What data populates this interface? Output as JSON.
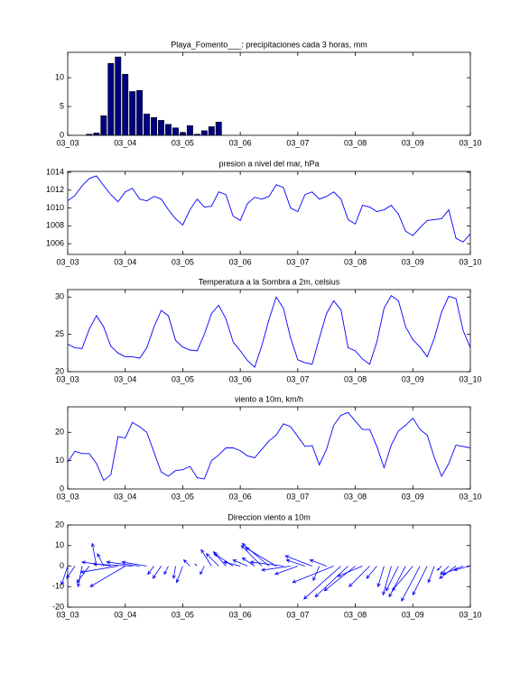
{
  "chart_data": [
    {
      "type": "bar",
      "title": "Playa_Fomento___: precipitaciones cada 3 horas, mm",
      "color": "#000080",
      "categories": [
        "03_03",
        null,
        null,
        null,
        null,
        null,
        null,
        null,
        "03_04",
        null,
        null,
        null,
        null,
        null,
        null,
        null,
        "03_05",
        null,
        null,
        null,
        null,
        null,
        null,
        null,
        "03_06",
        null,
        null,
        null,
        null,
        null,
        null,
        null,
        "03_07",
        null,
        null,
        null,
        null,
        null,
        null,
        null,
        "03_08",
        null,
        null,
        null,
        null,
        null,
        null,
        null,
        "03_09",
        null,
        null,
        null,
        null,
        null,
        null,
        null,
        "03_10"
      ],
      "values": [
        0,
        0,
        0,
        0.2,
        0.4,
        3.4,
        12.5,
        13.6,
        10.6,
        7.6,
        7.8,
        3.7,
        3.1,
        2.6,
        1.9,
        1.3,
        0.5,
        1.7,
        0.2,
        0.8,
        1.5,
        2.3,
        0,
        0,
        0,
        0,
        0,
        0,
        0,
        0,
        0,
        0,
        0,
        0,
        0,
        0,
        0,
        0,
        0,
        0,
        0,
        0,
        0,
        0,
        0,
        0,
        0,
        0,
        0,
        0,
        0,
        0,
        0,
        0,
        0,
        0,
        0
      ],
      "ylim": [
        0,
        14.4
      ],
      "yticks": [
        0,
        5,
        10
      ]
    },
    {
      "type": "line",
      "title": "presion a nivel del mar, hPa",
      "color": "#0000ff",
      "categories": [
        "03_03",
        null,
        null,
        null,
        null,
        null,
        null,
        null,
        "03_04",
        null,
        null,
        null,
        null,
        null,
        null,
        null,
        "03_05",
        null,
        null,
        null,
        null,
        null,
        null,
        null,
        "03_06",
        null,
        null,
        null,
        null,
        null,
        null,
        null,
        "03_07",
        null,
        null,
        null,
        null,
        null,
        null,
        null,
        "03_08",
        null,
        null,
        null,
        null,
        null,
        null,
        null,
        "03_09",
        null,
        null,
        null,
        null,
        null,
        null,
        null,
        "03_10"
      ],
      "values": [
        1010.8,
        1011.4,
        1012.5,
        1013.3,
        1013.6,
        1012.5,
        1011.5,
        1010.7,
        1011.8,
        1012.2,
        1011.0,
        1010.8,
        1011.3,
        1011.0,
        1009.8,
        1008.8,
        1008.1,
        1009.8,
        1011.0,
        1010.1,
        1010.2,
        1011.8,
        1011.5,
        1009.1,
        1008.6,
        1010.5,
        1011.2,
        1011.0,
        1011.3,
        1012.6,
        1012.3,
        1010.0,
        1009.6,
        1011.5,
        1011.8,
        1011.0,
        1011.3,
        1011.8,
        1011.0,
        1008.7,
        1008.2,
        1010.3,
        1010.1,
        1009.6,
        1009.8,
        1010.3,
        1009.3,
        1007.4,
        1006.9,
        1007.8,
        1008.6,
        1008.7,
        1008.8,
        1009.8,
        1006.6,
        1006.2,
        1007.1
      ],
      "ylim": [
        1004.8,
        1014.1
      ],
      "yticks": [
        1006,
        1008,
        1010,
        1012,
        1014
      ]
    },
    {
      "type": "line",
      "title": "Temperatura a la Sombra a 2m, celsius",
      "color": "#0000ff",
      "categories": [
        "03_03",
        null,
        null,
        null,
        null,
        null,
        null,
        null,
        "03_04",
        null,
        null,
        null,
        null,
        null,
        null,
        null,
        "03_05",
        null,
        null,
        null,
        null,
        null,
        null,
        null,
        "03_06",
        null,
        null,
        null,
        null,
        null,
        null,
        null,
        "03_07",
        null,
        null,
        null,
        null,
        null,
        null,
        null,
        "03_08",
        null,
        null,
        null,
        null,
        null,
        null,
        null,
        "03_09",
        null,
        null,
        null,
        null,
        null,
        null,
        null,
        "03_10"
      ],
      "values": [
        23.7,
        23.2,
        23.1,
        25.7,
        27.5,
        26.0,
        23.4,
        22.5,
        22.0,
        22.0,
        21.8,
        23.2,
        26.0,
        28.2,
        27.5,
        24.2,
        23.3,
        22.9,
        22.8,
        25.0,
        27.8,
        28.9,
        27.1,
        24.0,
        22.8,
        21.5,
        20.6,
        23.5,
        27.0,
        30.0,
        28.5,
        24.5,
        21.6,
        21.2,
        21.0,
        24.5,
        27.8,
        29.5,
        28.3,
        23.2,
        22.8,
        21.7,
        21.0,
        24.0,
        28.5,
        30.2,
        29.5,
        26.0,
        24.3,
        23.3,
        22.0,
        24.5,
        28.0,
        30.1,
        29.8,
        25.5,
        23.2
      ],
      "ylim": [
        20,
        31
      ],
      "yticks": [
        20,
        25,
        30
      ]
    },
    {
      "type": "line",
      "title": "viento a 10m, km/h",
      "color": "#0000ff",
      "categories": [
        "03_03",
        null,
        null,
        null,
        null,
        null,
        null,
        null,
        "03_04",
        null,
        null,
        null,
        null,
        null,
        null,
        null,
        "03_05",
        null,
        null,
        null,
        null,
        null,
        null,
        null,
        "03_06",
        null,
        null,
        null,
        null,
        null,
        null,
        null,
        "03_07",
        null,
        null,
        null,
        null,
        null,
        null,
        null,
        "03_08",
        null,
        null,
        null,
        null,
        null,
        null,
        null,
        "03_09",
        null,
        null,
        null,
        null,
        null,
        null,
        null,
        "03_10"
      ],
      "values": [
        9.5,
        13.3,
        12.5,
        12.5,
        9.0,
        3.0,
        5.0,
        18.5,
        18.0,
        23.5,
        22.0,
        20.0,
        13.0,
        6.0,
        4.5,
        6.5,
        6.8,
        8.0,
        4.0,
        3.5,
        10.0,
        12.0,
        14.5,
        14.5,
        13.5,
        11.7,
        11.0,
        14.0,
        17.0,
        19.0,
        23.0,
        22.0,
        18.5,
        15.0,
        15.3,
        8.5,
        14.0,
        22.5,
        26.0,
        27.0,
        24.0,
        21.0,
        21.0,
        15.0,
        7.5,
        15.5,
        20.5,
        22.5,
        25.0,
        21.0,
        19.0,
        11.0,
        4.5,
        9.0,
        15.5,
        15.0,
        14.5
      ],
      "ylim": [
        0,
        29
      ],
      "yticks": [
        0,
        10,
        20
      ]
    },
    {
      "type": "quiver",
      "title": "Direccion viento a 10m",
      "color": "#0000ff",
      "categories": [
        "03_03",
        null,
        null,
        null,
        null,
        null,
        null,
        null,
        "03_04",
        null,
        null,
        null,
        null,
        null,
        null,
        null,
        "03_05",
        null,
        null,
        null,
        null,
        null,
        null,
        null,
        "03_06",
        null,
        null,
        null,
        null,
        null,
        null,
        null,
        "03_07",
        null,
        null,
        null,
        null,
        null,
        null,
        null,
        "03_08",
        null,
        null,
        null,
        null,
        null,
        null,
        null,
        "03_09",
        null,
        null,
        null,
        null,
        null,
        null,
        null,
        "03_10"
      ],
      "u": [
        -3,
        -4,
        -2,
        -6,
        -2,
        -3,
        -14,
        -18,
        -17,
        -19,
        -16,
        -12,
        -3,
        -4,
        -2,
        -1,
        -3,
        -3,
        -1,
        -2,
        -5,
        -6,
        -6,
        -9,
        -8,
        -7,
        -6,
        -10,
        -13,
        -15,
        -16,
        -14,
        -11,
        -9,
        -13,
        -3,
        -8,
        -20,
        -18,
        -16,
        -15,
        -12,
        -10,
        -5,
        -3,
        -4,
        -6,
        -8,
        -10,
        -9,
        -7,
        -3,
        -2,
        -4,
        -8,
        -10,
        -8
      ],
      "v": [
        -9,
        -6,
        -10,
        -8,
        11,
        6,
        2,
        -3,
        -10,
        1,
        2,
        2,
        -4,
        -6,
        -4,
        -6,
        -8,
        3,
        1,
        -4,
        8,
        6,
        7,
        6,
        2,
        3,
        4,
        10,
        11,
        9,
        2,
        -2,
        -4,
        3,
        5,
        -7,
        3,
        -8,
        -16,
        -15,
        -12,
        -5,
        -10,
        -6,
        -10,
        -14,
        -12,
        -15,
        -12,
        -17,
        -14,
        -8,
        -2,
        -4,
        -6,
        -4,
        -2
      ],
      "ylim": [
        -20,
        20
      ],
      "yticks": [
        -20,
        -10,
        0,
        10,
        20
      ]
    }
  ]
}
